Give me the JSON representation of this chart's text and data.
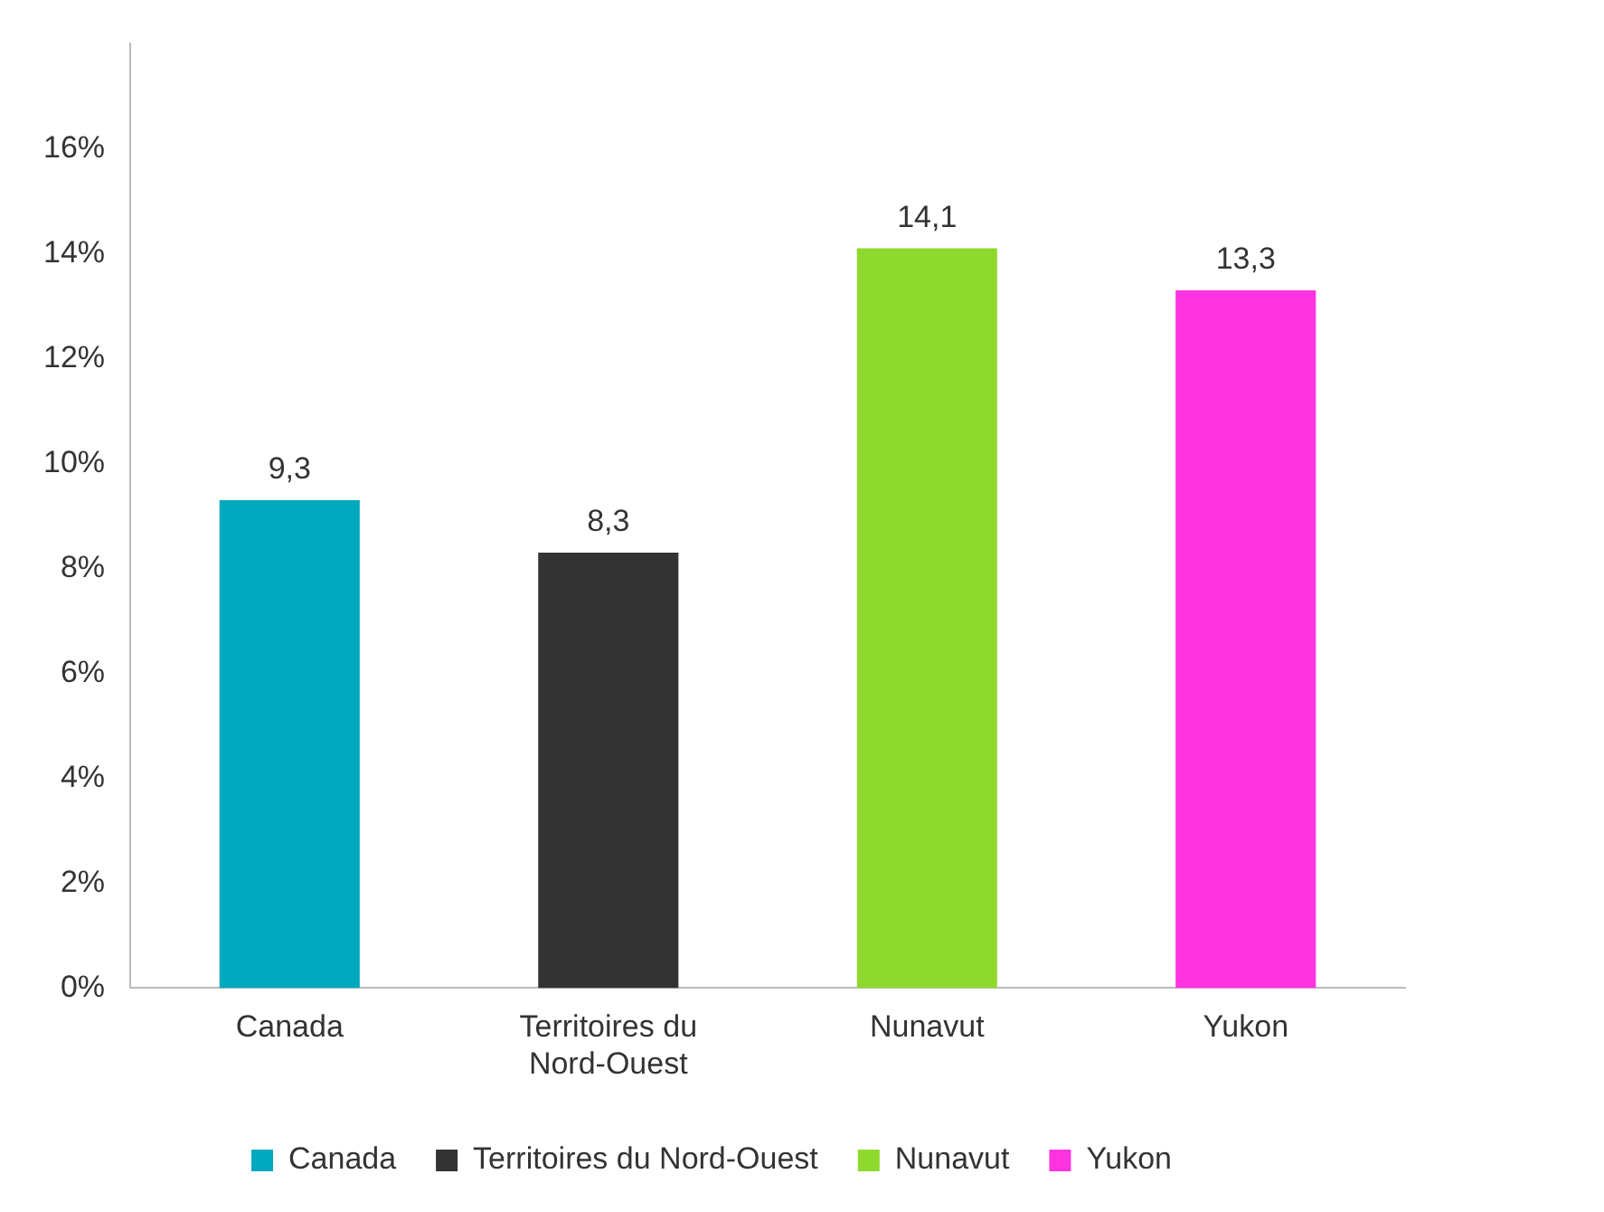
{
  "chart_data": {
    "type": "bar",
    "categories": [
      "Canada",
      "Territoires du Nord-Ouest",
      "Nunavut",
      "Yukon"
    ],
    "series": [
      {
        "name": "Canada",
        "color": "#00a9bd",
        "values": [
          9.3,
          null,
          null,
          null
        ],
        "value_labels": [
          "9,3",
          null,
          null,
          null
        ]
      },
      {
        "name": "Territoires du Nord-Ouest",
        "color": "#333333",
        "values": [
          null,
          8.3,
          null,
          null
        ],
        "value_labels": [
          null,
          "8,3",
          null,
          null
        ]
      },
      {
        "name": "Nunavut",
        "color": "#8fd92f",
        "values": [
          null,
          null,
          14.1,
          null
        ],
        "value_labels": [
          null,
          null,
          "14,1",
          null
        ]
      },
      {
        "name": "Yukon",
        "color": "#ff33e0",
        "values": [
          null,
          null,
          null,
          13.3
        ],
        "value_labels": [
          null,
          null,
          null,
          "13,3"
        ]
      }
    ],
    "ylim": [
      0,
      18
    ],
    "yticks": [
      {
        "value": 0,
        "label": "0%"
      },
      {
        "value": 2,
        "label": "2%"
      },
      {
        "value": 4,
        "label": "4%"
      },
      {
        "value": 6,
        "label": "6%"
      },
      {
        "value": 8,
        "label": "8%"
      },
      {
        "value": 10,
        "label": "10%"
      },
      {
        "value": 12,
        "label": "12%"
      },
      {
        "value": 14,
        "label": "14%"
      },
      {
        "value": 16,
        "label": "16%"
      }
    ],
    "grid": false,
    "legend": "bottom"
  }
}
